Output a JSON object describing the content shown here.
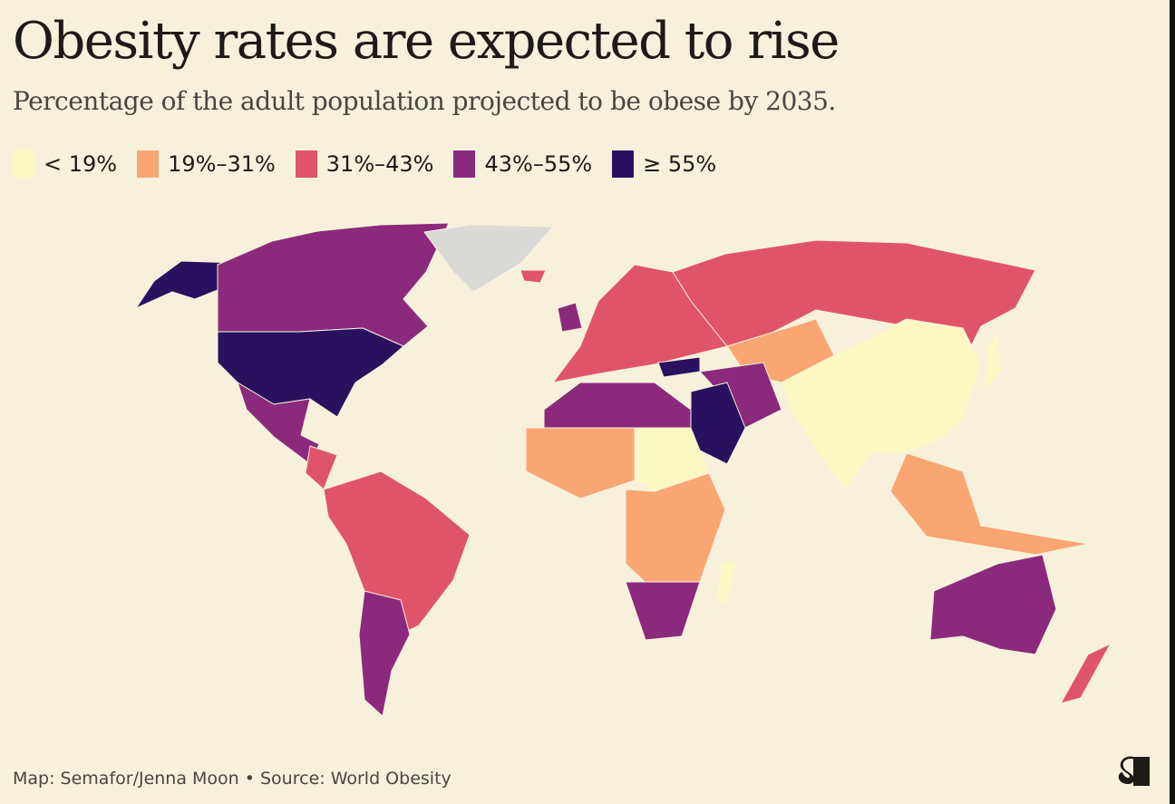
{
  "title": "Obesity rates are expected to rise",
  "subtitle": "Percentage of the adult population projected to be obese by 2035.",
  "legend": [
    {
      "label": "< 19%",
      "color": "#fcf8c2"
    },
    {
      "label": "19%–31%",
      "color": "#f9a673"
    },
    {
      "label": "31%–43%",
      "color": "#e05469"
    },
    {
      "label": "43%–55%",
      "color": "#8b2a7c"
    },
    {
      "label": "≥ 55%",
      "color": "#2a1160"
    }
  ],
  "no_data_color": "#d9d9d6",
  "regions": [
    {
      "id": "alaska",
      "bin": 4
    },
    {
      "id": "canada",
      "bin": 3
    },
    {
      "id": "greenland",
      "bin": null
    },
    {
      "id": "united-states",
      "bin": 4
    },
    {
      "id": "mexico",
      "bin": 3
    },
    {
      "id": "central-america",
      "bin": 2
    },
    {
      "id": "south-america-north",
      "bin": 2
    },
    {
      "id": "southern-cone",
      "bin": 3
    },
    {
      "id": "europe",
      "bin": 2
    },
    {
      "id": "united-kingdom",
      "bin": 3
    },
    {
      "id": "iceland",
      "bin": 2
    },
    {
      "id": "russia",
      "bin": 2
    },
    {
      "id": "central-asia",
      "bin": 1
    },
    {
      "id": "china-south-asia",
      "bin": 0
    },
    {
      "id": "turkey",
      "bin": 4
    },
    {
      "id": "iran-iraq",
      "bin": 3
    },
    {
      "id": "saudi-arabia",
      "bin": 4
    },
    {
      "id": "north-africa",
      "bin": 3
    },
    {
      "id": "west-africa",
      "bin": 1
    },
    {
      "id": "central-africa",
      "bin": 0
    },
    {
      "id": "east-africa",
      "bin": 1
    },
    {
      "id": "southern-africa",
      "bin": 3
    },
    {
      "id": "madagascar",
      "bin": 0
    },
    {
      "id": "southeast-asia",
      "bin": 1
    },
    {
      "id": "japan",
      "bin": 0
    },
    {
      "id": "australia",
      "bin": 3
    },
    {
      "id": "new-zealand",
      "bin": 2
    }
  ],
  "footer": "Map: Semafor/Jenna Moon • Source: World Obesity",
  "logo_text": "S"
}
